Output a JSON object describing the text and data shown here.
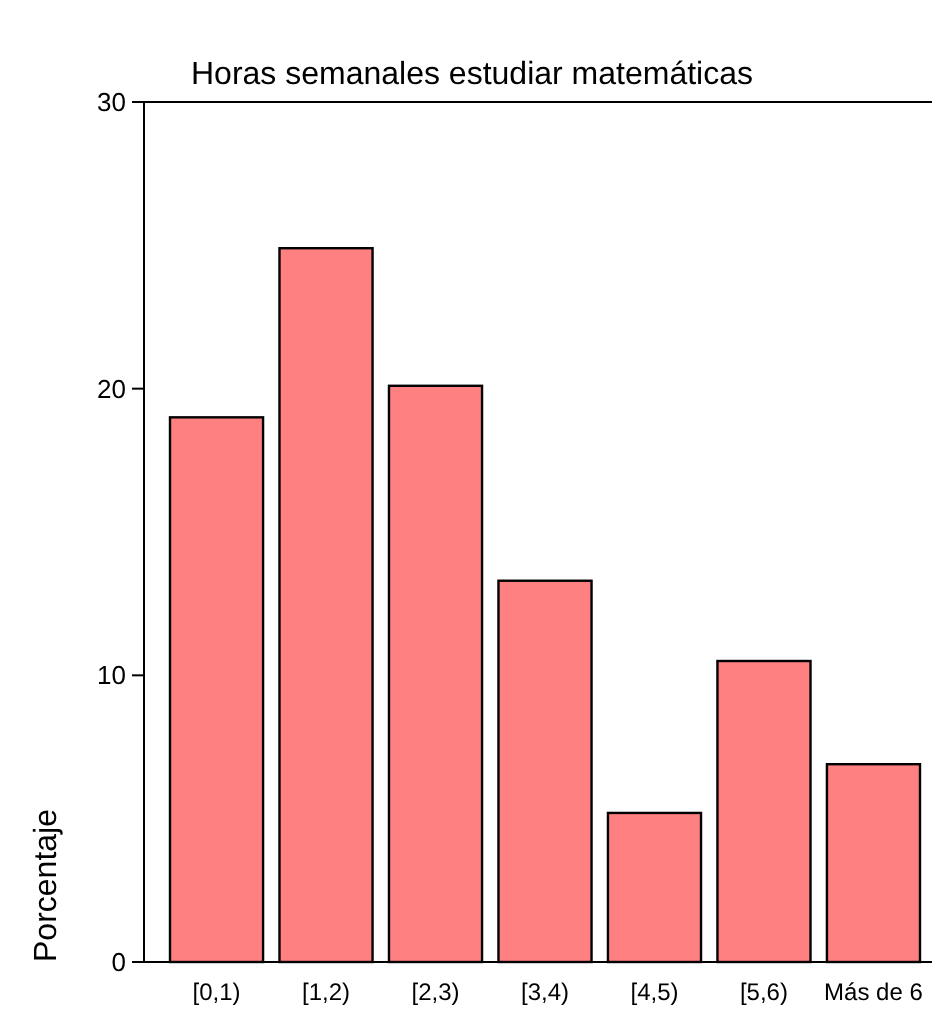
{
  "chart_data": {
    "type": "bar",
    "title": "Horas semanales estudiar matemáticas",
    "ylabel": "Porcentaje",
    "categories": [
      "[0,1)",
      "[1,2)",
      "[2,3)",
      "[3,4)",
      "[4,5)",
      "[5,6)",
      "Más de 6"
    ],
    "values": [
      19.0,
      24.9,
      20.1,
      13.3,
      5.2,
      10.5,
      6.9
    ],
    "color": "#ff8080",
    "ylim": [
      0,
      30
    ],
    "yticks": [
      0,
      10,
      20,
      30
    ],
    "grid": false
  }
}
